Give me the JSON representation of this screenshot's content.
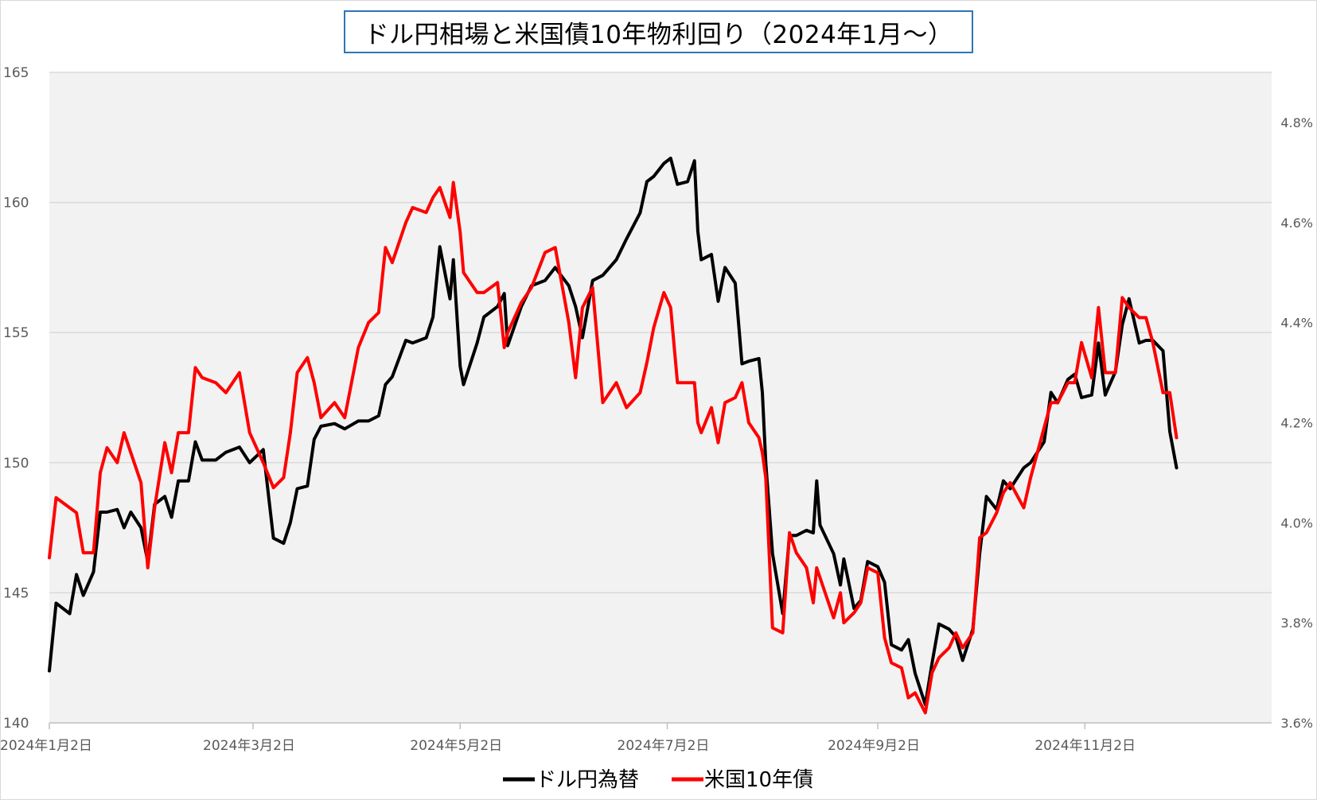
{
  "chart_data": {
    "type": "line",
    "title": "ドル円相場と米国債10年物利回り（2024年1月～）",
    "left_axis": {
      "ylim": [
        140,
        165
      ],
      "ticks": [
        "140",
        "145",
        "150",
        "155",
        "160",
        "165"
      ]
    },
    "right_axis": {
      "ylim": [
        3.6,
        4.9
      ],
      "ticks": [
        "3.6%",
        "3.8%",
        "4.0%",
        "4.2%",
        "4.4%",
        "4.6%",
        "4.8%"
      ]
    },
    "x_axis": {
      "range": [
        "2024-01-02",
        "2024-12-27"
      ],
      "tick_dates": [
        "2024-01-02",
        "2024-03-02",
        "2024-05-02",
        "2024-07-02",
        "2024-09-02",
        "2024-11-02"
      ],
      "tick_labels": [
        "2024年1月2日",
        "2024年3月2日",
        "2024年5月2日",
        "2024年7月2日",
        "2024年9月2日",
        "2024年11月2日"
      ]
    },
    "grid": "horizontal",
    "legend_position": "bottom",
    "series": [
      {
        "name": "ドル円為替",
        "axis": "left",
        "color": "#000000",
        "points": [
          [
            "2024-01-02",
            142.0
          ],
          [
            "2024-01-04",
            144.6
          ],
          [
            "2024-01-08",
            144.2
          ],
          [
            "2024-01-10",
            145.7
          ],
          [
            "2024-01-12",
            144.9
          ],
          [
            "2024-01-15",
            145.8
          ],
          [
            "2024-01-17",
            148.1
          ],
          [
            "2024-01-19",
            148.1
          ],
          [
            "2024-01-22",
            148.2
          ],
          [
            "2024-01-24",
            147.5
          ],
          [
            "2024-01-26",
            148.1
          ],
          [
            "2024-01-29",
            147.5
          ],
          [
            "2024-01-31",
            146.2
          ],
          [
            "2024-02-02",
            148.4
          ],
          [
            "2024-02-05",
            148.7
          ],
          [
            "2024-02-07",
            147.9
          ],
          [
            "2024-02-09",
            149.3
          ],
          [
            "2024-02-12",
            149.3
          ],
          [
            "2024-02-14",
            150.8
          ],
          [
            "2024-02-16",
            150.1
          ],
          [
            "2024-02-20",
            150.1
          ],
          [
            "2024-02-23",
            150.4
          ],
          [
            "2024-02-27",
            150.6
          ],
          [
            "2024-03-01",
            150.0
          ],
          [
            "2024-03-05",
            150.5
          ],
          [
            "2024-03-08",
            147.1
          ],
          [
            "2024-03-11",
            146.9
          ],
          [
            "2024-03-13",
            147.7
          ],
          [
            "2024-03-15",
            149.0
          ],
          [
            "2024-03-18",
            149.1
          ],
          [
            "2024-03-20",
            150.9
          ],
          [
            "2024-03-22",
            151.4
          ],
          [
            "2024-03-26",
            151.5
          ],
          [
            "2024-03-29",
            151.3
          ],
          [
            "2024-04-02",
            151.6
          ],
          [
            "2024-04-05",
            151.6
          ],
          [
            "2024-04-08",
            151.8
          ],
          [
            "2024-04-10",
            153.0
          ],
          [
            "2024-04-12",
            153.3
          ],
          [
            "2024-04-16",
            154.7
          ],
          [
            "2024-04-18",
            154.6
          ],
          [
            "2024-04-22",
            154.8
          ],
          [
            "2024-04-24",
            155.6
          ],
          [
            "2024-04-26",
            158.3
          ],
          [
            "2024-04-29",
            156.3
          ],
          [
            "2024-04-30",
            157.8
          ],
          [
            "2024-05-02",
            153.7
          ],
          [
            "2024-05-03",
            153.0
          ],
          [
            "2024-05-07",
            154.6
          ],
          [
            "2024-05-09",
            155.6
          ],
          [
            "2024-05-13",
            156.0
          ],
          [
            "2024-05-15",
            156.5
          ],
          [
            "2024-05-16",
            154.5
          ],
          [
            "2024-05-20",
            156.0
          ],
          [
            "2024-05-23",
            156.8
          ],
          [
            "2024-05-27",
            157.0
          ],
          [
            "2024-05-30",
            157.5
          ],
          [
            "2024-06-03",
            156.8
          ],
          [
            "2024-06-05",
            156.0
          ],
          [
            "2024-06-07",
            154.8
          ],
          [
            "2024-06-10",
            157.0
          ],
          [
            "2024-06-13",
            157.2
          ],
          [
            "2024-06-17",
            157.8
          ],
          [
            "2024-06-20",
            158.6
          ],
          [
            "2024-06-24",
            159.6
          ],
          [
            "2024-06-26",
            160.8
          ],
          [
            "2024-06-28",
            161.0
          ],
          [
            "2024-07-01",
            161.5
          ],
          [
            "2024-07-03",
            161.7
          ],
          [
            "2024-07-05",
            160.7
          ],
          [
            "2024-07-08",
            160.8
          ],
          [
            "2024-07-10",
            161.6
          ],
          [
            "2024-07-11",
            158.9
          ],
          [
            "2024-07-12",
            157.8
          ],
          [
            "2024-07-15",
            158.0
          ],
          [
            "2024-07-17",
            156.2
          ],
          [
            "2024-07-19",
            157.5
          ],
          [
            "2024-07-22",
            156.9
          ],
          [
            "2024-07-24",
            153.8
          ],
          [
            "2024-07-26",
            153.9
          ],
          [
            "2024-07-29",
            154.0
          ],
          [
            "2024-07-30",
            152.7
          ],
          [
            "2024-07-31",
            150.0
          ],
          [
            "2024-08-02",
            146.5
          ],
          [
            "2024-08-05",
            144.2
          ],
          [
            "2024-08-07",
            147.2
          ],
          [
            "2024-08-09",
            147.2
          ],
          [
            "2024-08-12",
            147.4
          ],
          [
            "2024-08-14",
            147.3
          ],
          [
            "2024-08-15",
            149.3
          ],
          [
            "2024-08-16",
            147.6
          ],
          [
            "2024-08-20",
            146.5
          ],
          [
            "2024-08-22",
            145.3
          ],
          [
            "2024-08-23",
            146.3
          ],
          [
            "2024-08-26",
            144.4
          ],
          [
            "2024-08-28",
            144.7
          ],
          [
            "2024-08-30",
            146.2
          ],
          [
            "2024-09-02",
            146.0
          ],
          [
            "2024-09-04",
            145.4
          ],
          [
            "2024-09-06",
            143.0
          ],
          [
            "2024-09-09",
            142.8
          ],
          [
            "2024-09-11",
            143.2
          ],
          [
            "2024-09-13",
            141.9
          ],
          [
            "2024-09-16",
            140.7
          ],
          [
            "2024-09-18",
            142.3
          ],
          [
            "2024-09-20",
            143.8
          ],
          [
            "2024-09-23",
            143.6
          ],
          [
            "2024-09-25",
            143.3
          ],
          [
            "2024-09-27",
            142.4
          ],
          [
            "2024-09-30",
            143.6
          ],
          [
            "2024-10-02",
            146.5
          ],
          [
            "2024-10-04",
            148.7
          ],
          [
            "2024-10-07",
            148.2
          ],
          [
            "2024-10-09",
            149.3
          ],
          [
            "2024-10-11",
            149.0
          ],
          [
            "2024-10-15",
            149.8
          ],
          [
            "2024-10-17",
            150.0
          ],
          [
            "2024-10-21",
            150.8
          ],
          [
            "2024-10-23",
            152.7
          ],
          [
            "2024-10-25",
            152.3
          ],
          [
            "2024-10-28",
            153.2
          ],
          [
            "2024-10-30",
            153.4
          ],
          [
            "2024-11-01",
            152.5
          ],
          [
            "2024-11-04",
            152.6
          ],
          [
            "2024-11-06",
            154.6
          ],
          [
            "2024-11-08",
            152.6
          ],
          [
            "2024-11-11",
            153.5
          ],
          [
            "2024-11-13",
            155.3
          ],
          [
            "2024-11-15",
            156.3
          ],
          [
            "2024-11-18",
            154.6
          ],
          [
            "2024-11-20",
            154.7
          ],
          [
            "2024-11-22",
            154.7
          ],
          [
            "2024-11-25",
            154.3
          ],
          [
            "2024-11-27",
            151.2
          ],
          [
            "2024-11-29",
            149.8
          ]
        ]
      },
      {
        "name": "米国10年債",
        "axis": "right",
        "color": "#ff0000",
        "points": [
          [
            "2024-01-02",
            3.93
          ],
          [
            "2024-01-04",
            4.05
          ],
          [
            "2024-01-08",
            4.03
          ],
          [
            "2024-01-10",
            4.02
          ],
          [
            "2024-01-12",
            3.94
          ],
          [
            "2024-01-15",
            3.94
          ],
          [
            "2024-01-17",
            4.1
          ],
          [
            "2024-01-19",
            4.15
          ],
          [
            "2024-01-22",
            4.12
          ],
          [
            "2024-01-24",
            4.18
          ],
          [
            "2024-01-26",
            4.14
          ],
          [
            "2024-01-29",
            4.08
          ],
          [
            "2024-01-31",
            3.91
          ],
          [
            "2024-02-02",
            4.03
          ],
          [
            "2024-02-05",
            4.16
          ],
          [
            "2024-02-07",
            4.1
          ],
          [
            "2024-02-09",
            4.18
          ],
          [
            "2024-02-12",
            4.18
          ],
          [
            "2024-02-14",
            4.31
          ],
          [
            "2024-02-16",
            4.29
          ],
          [
            "2024-02-20",
            4.28
          ],
          [
            "2024-02-23",
            4.26
          ],
          [
            "2024-02-27",
            4.3
          ],
          [
            "2024-03-01",
            4.18
          ],
          [
            "2024-03-05",
            4.12
          ],
          [
            "2024-03-08",
            4.07
          ],
          [
            "2024-03-11",
            4.09
          ],
          [
            "2024-03-13",
            4.18
          ],
          [
            "2024-03-15",
            4.3
          ],
          [
            "2024-03-18",
            4.33
          ],
          [
            "2024-03-20",
            4.28
          ],
          [
            "2024-03-22",
            4.21
          ],
          [
            "2024-03-26",
            4.24
          ],
          [
            "2024-03-29",
            4.21
          ],
          [
            "2024-04-02",
            4.35
          ],
          [
            "2024-04-05",
            4.4
          ],
          [
            "2024-04-08",
            4.42
          ],
          [
            "2024-04-10",
            4.55
          ],
          [
            "2024-04-12",
            4.52
          ],
          [
            "2024-04-16",
            4.6
          ],
          [
            "2024-04-18",
            4.63
          ],
          [
            "2024-04-22",
            4.62
          ],
          [
            "2024-04-24",
            4.65
          ],
          [
            "2024-04-26",
            4.67
          ],
          [
            "2024-04-29",
            4.61
          ],
          [
            "2024-04-30",
            4.68
          ],
          [
            "2024-05-02",
            4.58
          ],
          [
            "2024-05-03",
            4.5
          ],
          [
            "2024-05-07",
            4.46
          ],
          [
            "2024-05-09",
            4.46
          ],
          [
            "2024-05-13",
            4.48
          ],
          [
            "2024-05-15",
            4.35
          ],
          [
            "2024-05-16",
            4.38
          ],
          [
            "2024-05-20",
            4.44
          ],
          [
            "2024-05-23",
            4.47
          ],
          [
            "2024-05-27",
            4.54
          ],
          [
            "2024-05-30",
            4.55
          ],
          [
            "2024-06-03",
            4.4
          ],
          [
            "2024-06-05",
            4.29
          ],
          [
            "2024-06-07",
            4.43
          ],
          [
            "2024-06-10",
            4.47
          ],
          [
            "2024-06-13",
            4.24
          ],
          [
            "2024-06-17",
            4.28
          ],
          [
            "2024-06-20",
            4.23
          ],
          [
            "2024-06-24",
            4.26
          ],
          [
            "2024-06-26",
            4.32
          ],
          [
            "2024-06-28",
            4.39
          ],
          [
            "2024-07-01",
            4.46
          ],
          [
            "2024-07-03",
            4.43
          ],
          [
            "2024-07-05",
            4.28
          ],
          [
            "2024-07-08",
            4.28
          ],
          [
            "2024-07-10",
            4.28
          ],
          [
            "2024-07-11",
            4.2
          ],
          [
            "2024-07-12",
            4.18
          ],
          [
            "2024-07-15",
            4.23
          ],
          [
            "2024-07-17",
            4.16
          ],
          [
            "2024-07-19",
            4.24
          ],
          [
            "2024-07-22",
            4.25
          ],
          [
            "2024-07-24",
            4.28
          ],
          [
            "2024-07-26",
            4.2
          ],
          [
            "2024-07-29",
            4.17
          ],
          [
            "2024-07-30",
            4.14
          ],
          [
            "2024-07-31",
            4.09
          ],
          [
            "2024-08-02",
            3.79
          ],
          [
            "2024-08-05",
            3.78
          ],
          [
            "2024-08-07",
            3.98
          ],
          [
            "2024-08-09",
            3.94
          ],
          [
            "2024-08-12",
            3.91
          ],
          [
            "2024-08-14",
            3.84
          ],
          [
            "2024-08-15",
            3.91
          ],
          [
            "2024-08-16",
            3.89
          ],
          [
            "2024-08-20",
            3.81
          ],
          [
            "2024-08-22",
            3.86
          ],
          [
            "2024-08-23",
            3.8
          ],
          [
            "2024-08-26",
            3.82
          ],
          [
            "2024-08-28",
            3.84
          ],
          [
            "2024-08-30",
            3.91
          ],
          [
            "2024-09-02",
            3.9
          ],
          [
            "2024-09-04",
            3.77
          ],
          [
            "2024-09-06",
            3.72
          ],
          [
            "2024-09-09",
            3.71
          ],
          [
            "2024-09-11",
            3.65
          ],
          [
            "2024-09-13",
            3.66
          ],
          [
            "2024-09-16",
            3.62
          ],
          [
            "2024-09-18",
            3.7
          ],
          [
            "2024-09-20",
            3.73
          ],
          [
            "2024-09-23",
            3.75
          ],
          [
            "2024-09-25",
            3.78
          ],
          [
            "2024-09-27",
            3.75
          ],
          [
            "2024-09-30",
            3.78
          ],
          [
            "2024-10-02",
            3.97
          ],
          [
            "2024-10-04",
            3.98
          ],
          [
            "2024-10-07",
            4.02
          ],
          [
            "2024-10-09",
            4.06
          ],
          [
            "2024-10-11",
            4.08
          ],
          [
            "2024-10-15",
            4.03
          ],
          [
            "2024-10-17",
            4.09
          ],
          [
            "2024-10-21",
            4.19
          ],
          [
            "2024-10-23",
            4.24
          ],
          [
            "2024-10-25",
            4.24
          ],
          [
            "2024-10-28",
            4.28
          ],
          [
            "2024-10-30",
            4.28
          ],
          [
            "2024-11-01",
            4.36
          ],
          [
            "2024-11-04",
            4.29
          ],
          [
            "2024-11-06",
            4.43
          ],
          [
            "2024-11-08",
            4.3
          ],
          [
            "2024-11-11",
            4.3
          ],
          [
            "2024-11-13",
            4.45
          ],
          [
            "2024-11-15",
            4.43
          ],
          [
            "2024-11-18",
            4.41
          ],
          [
            "2024-11-20",
            4.41
          ],
          [
            "2024-11-22",
            4.36
          ],
          [
            "2024-11-25",
            4.26
          ],
          [
            "2024-11-27",
            4.26
          ],
          [
            "2024-11-29",
            4.17
          ]
        ]
      }
    ]
  }
}
